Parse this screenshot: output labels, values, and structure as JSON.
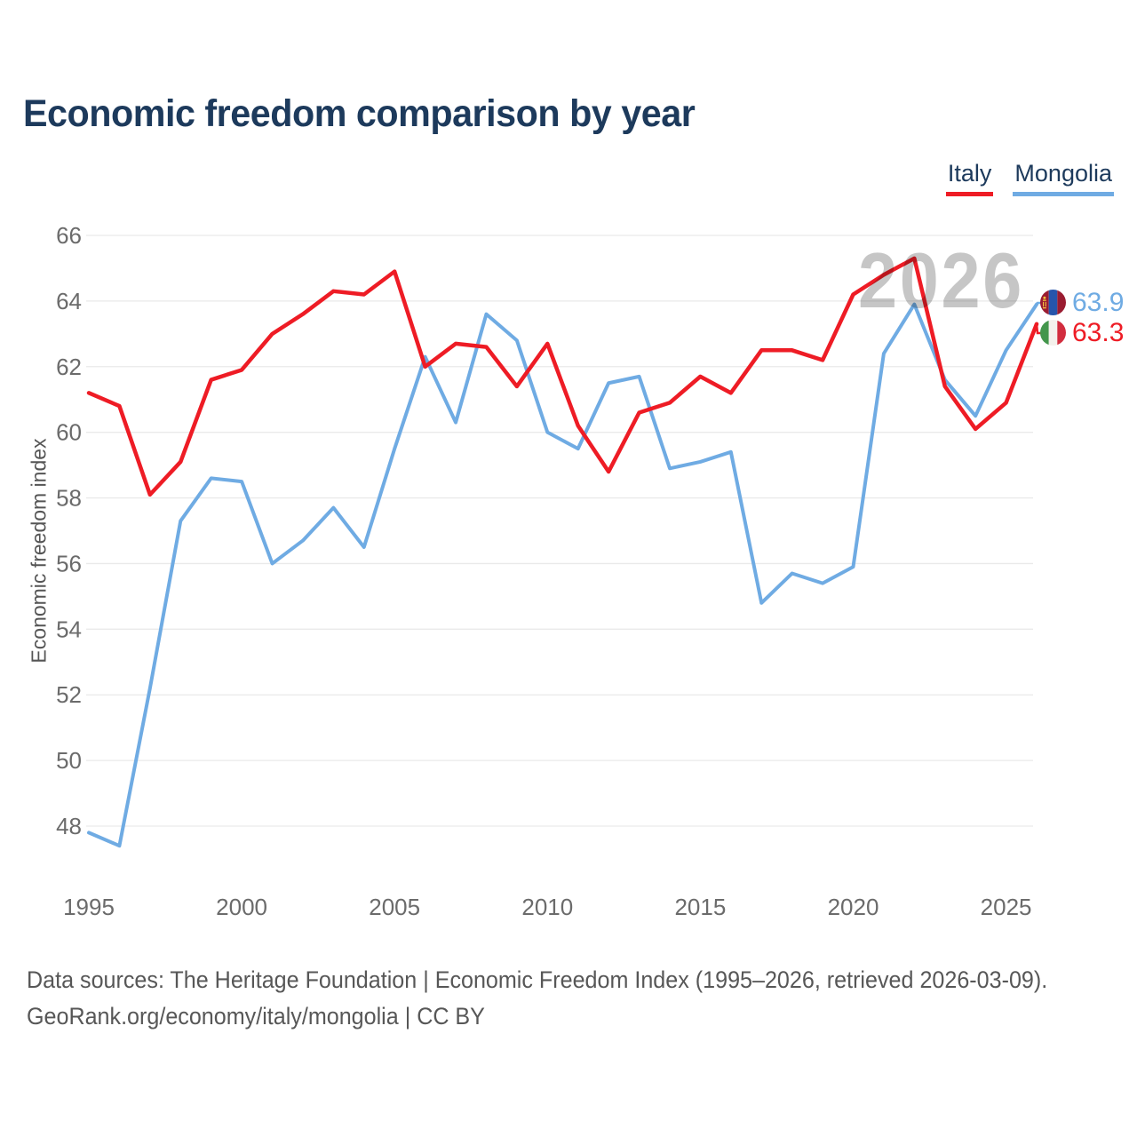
{
  "title": "Economic freedom comparison by year",
  "legend": [
    {
      "label": "Italy",
      "color": "#ee1c25"
    },
    {
      "label": "Mongolia",
      "color": "#6fabe3"
    }
  ],
  "watermark": "2026",
  "colors": {
    "italy_red": "#ee1c25",
    "mongolia_blue": "#6fabe3",
    "title_navy": "#1d3a5c",
    "gridline_gray": "#eaeaea",
    "tick_gray": "#6b6b6b",
    "watermark_gray": "#c6c6c6"
  },
  "end_labels": [
    {
      "series": "Mongolia",
      "value": "63.9",
      "color": "#6fabe3",
      "flag": "mongolia-flag"
    },
    {
      "series": "Italy",
      "value": "63.3",
      "color": "#ee1c25",
      "flag": "italy-flag"
    }
  ],
  "chart_data": {
    "type": "line",
    "title": "Economic freedom comparison by year",
    "xlabel": "",
    "ylabel": "Economic freedom index",
    "x": [
      1995,
      1996,
      1997,
      1998,
      1999,
      2000,
      2001,
      2002,
      2003,
      2004,
      2005,
      2006,
      2007,
      2008,
      2009,
      2010,
      2011,
      2012,
      2013,
      2014,
      2015,
      2016,
      2017,
      2018,
      2019,
      2020,
      2021,
      2022,
      2023,
      2024,
      2025,
      2026
    ],
    "series": [
      {
        "name": "Italy",
        "color": "#ee1c25",
        "values": [
          61.2,
          60.8,
          58.1,
          59.1,
          61.6,
          61.9,
          63.0,
          63.6,
          64.3,
          64.2,
          64.9,
          62.0,
          62.7,
          62.6,
          61.4,
          62.7,
          60.2,
          58.8,
          60.6,
          60.9,
          61.7,
          61.2,
          62.5,
          62.5,
          62.2,
          64.2,
          64.8,
          65.3,
          61.4,
          60.1,
          60.9,
          63.3
        ]
      },
      {
        "name": "Mongolia",
        "color": "#6fabe3",
        "values": [
          47.8,
          47.4,
          52.2,
          57.3,
          58.6,
          58.5,
          56.0,
          56.7,
          57.7,
          56.5,
          59.5,
          62.3,
          60.3,
          63.6,
          62.8,
          60.0,
          59.5,
          61.5,
          61.7,
          58.9,
          59.1,
          59.4,
          54.8,
          55.7,
          55.4,
          55.9,
          62.4,
          63.9,
          61.6,
          60.5,
          62.5,
          63.9
        ]
      }
    ],
    "x_ticks": [
      1995,
      2000,
      2005,
      2010,
      2015,
      2020,
      2025
    ],
    "y_ticks": [
      48,
      50,
      52,
      54,
      56,
      58,
      60,
      62,
      64,
      66
    ],
    "ylim": [
      48,
      66
    ],
    "grid": "horizontal",
    "legend_position": "top-right"
  },
  "footer": {
    "line1": "Data sources: The Heritage Foundation | Economic Freedom Index (1995–2026, retrieved 2026-03-09).",
    "line2": "GeoRank.org/economy/italy/mongolia | CC BY"
  }
}
